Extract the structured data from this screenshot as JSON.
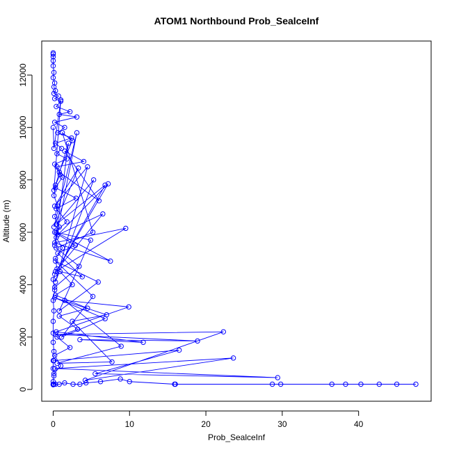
{
  "chart_data": {
    "type": "line",
    "title": "ATOM1 Northbound Prob_SealceInf",
    "xlabel": "Prob_SealceInf",
    "ylabel": "Altitude (m)",
    "xlim": [
      -1.5,
      49.5
    ],
    "ylim": [
      -450,
      13300
    ],
    "x_ticks": [
      0,
      10,
      20,
      30,
      40
    ],
    "y_ticks": [
      0,
      2000,
      4000,
      6000,
      8000,
      10000,
      12000
    ],
    "grid": false,
    "legend": "none",
    "color": "#0000ff",
    "series": [
      {
        "x": [
          0,
          0,
          0.1,
          0,
          0,
          0.1,
          0,
          0,
          0,
          0.1,
          0,
          0.2,
          0,
          0.5,
          0.3,
          1.2,
          0.4,
          0.8,
          0.2,
          0.6,
          0.1,
          0.3,
          0.9,
          0.2,
          1.8,
          0.5,
          1.1,
          0.3,
          2.4,
          0.6,
          1.5,
          0.2,
          3.1,
          0.8,
          2.2,
          0.4,
          1.0,
          0.2,
          0.7,
          0.1,
          0.3,
          0.1,
          0.2,
          0,
          0.1,
          0,
          0,
          0,
          0,
          0
        ],
        "y": [
          180,
          300,
          520,
          800,
          1100,
          1450,
          1800,
          2150,
          2600,
          3000,
          3400,
          3800,
          4200,
          4600,
          5000,
          5400,
          5800,
          6200,
          6600,
          7000,
          7400,
          7800,
          8200,
          8600,
          8800,
          9000,
          9200,
          9400,
          9600,
          9800,
          10000,
          10200,
          10400,
          10500,
          10600,
          10800,
          11000,
          11100,
          11200,
          11300,
          11400,
          11550,
          11700,
          11900,
          12100,
          12350,
          12550,
          12700,
          12800,
          12850
        ]
      },
      {
        "x": [
          47.5,
          45.0,
          42.7,
          40.3,
          38.3,
          36.5,
          29.8,
          28.7,
          16.0,
          15.9,
          10.0,
          8.8,
          6.2,
          4.3,
          3.5,
          2.6,
          1.5,
          0.8,
          0.3,
          0.1,
          0
        ],
        "y": [
          200,
          200,
          200,
          200,
          200,
          200,
          200,
          200,
          200,
          200,
          300,
          400,
          300,
          250,
          200,
          200,
          250,
          200,
          200,
          200,
          200
        ]
      },
      {
        "x": [
          0.1,
          16.5,
          5.5,
          29.4,
          0.2,
          23.6,
          4.2,
          22.3,
          0.3,
          18.9,
          3.5,
          11.8,
          0.4,
          9.9,
          1.5,
          8.9,
          0.5,
          7.7,
          2.5,
          7.0,
          0.2,
          6.8,
          1.1,
          5.2,
          0.3,
          5.9,
          0.8,
          4.9,
          0.4,
          7.5,
          0.2,
          9.5,
          0.3,
          6.5,
          0.6,
          7.2,
          0.2,
          6.8,
          0.4,
          5.3,
          0.3,
          4.5,
          0.2,
          3.3,
          0.1,
          3.1,
          0.2,
          2.0,
          0.1,
          1.0,
          0.1,
          0
        ],
        "y": [
          1100,
          1500,
          600,
          450,
          800,
          1200,
          350,
          2200,
          2100,
          1850,
          1900,
          1800,
          2200,
          3150,
          3400,
          1650,
          1000,
          1050,
          2600,
          2850,
          3500,
          2700,
          2000,
          3550,
          4900,
          4100,
          3000,
          5700,
          6000,
          4900,
          5600,
          6150,
          4500,
          6700,
          5900,
          7850,
          4400,
          7800,
          6300,
          8000,
          4100,
          8500,
          7000,
          8450,
          6200,
          9800,
          5500,
          9400,
          7600,
          11050,
          9200,
          10000
        ]
      },
      {
        "x": [
          0.1,
          1.0,
          0.2,
          2.2,
          0.5,
          3.2,
          0.8,
          4.5,
          0.3,
          2.5,
          0.9,
          3.8,
          0.6,
          2.9,
          0.2,
          1.8,
          0.4,
          3.0,
          0.3,
          1.2,
          0.5,
          4.0,
          1.5,
          6.0,
          0.8,
          2.5,
          1.2,
          5.2,
          0.4,
          3.4,
          0.2
        ],
        "y": [
          600,
          900,
          1300,
          1600,
          2000,
          2300,
          2800,
          3100,
          3600,
          4000,
          4500,
          4300,
          5200,
          5500,
          6000,
          6400,
          6900,
          7300,
          7700,
          8100,
          8500,
          8700,
          9100,
          7200,
          8300,
          9500,
          9800,
          6000,
          5400,
          4700,
          3900
        ]
      }
    ]
  }
}
